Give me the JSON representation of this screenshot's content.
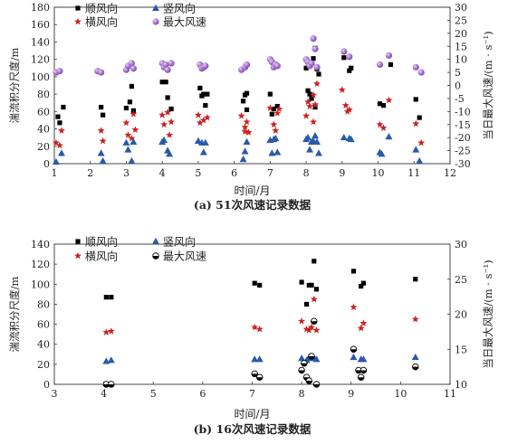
{
  "chart_data": [
    {
      "type": "scatter",
      "caption": "(a) 51次风速记录数据",
      "xlabel": "时间/月",
      "ylabel_left": "湍流积分尺度/m",
      "ylabel_right": "当日最大风速/(m · s⁻¹)",
      "xlim": [
        1,
        12
      ],
      "xticks": [
        1,
        2,
        3,
        4,
        5,
        6,
        7,
        8,
        9,
        10,
        11,
        12
      ],
      "ylim_left": [
        0,
        180
      ],
      "yticks_left": [
        0,
        20,
        40,
        60,
        80,
        100,
        120,
        140,
        160,
        180
      ],
      "ylim_right": [
        -30,
        30
      ],
      "yticks_right": [
        -30,
        -25,
        -20,
        -15,
        -10,
        -5,
        0,
        5,
        10,
        15,
        20,
        25,
        30
      ],
      "series": [
        {
          "name": "顺风向",
          "axis": "left",
          "marker": "square",
          "color": "#000000",
          "points": [
            [
              1.1,
              54
            ],
            [
              1.15,
              47
            ],
            [
              1.25,
              65
            ],
            [
              2.3,
              65
            ],
            [
              2.35,
              56
            ],
            [
              3.0,
              64
            ],
            [
              3.1,
              71
            ],
            [
              3.15,
              89
            ],
            [
              3.2,
              61
            ],
            [
              4.0,
              94
            ],
            [
              4.1,
              94
            ],
            [
              4.15,
              76
            ],
            [
              4.25,
              63
            ],
            [
              5.05,
              87
            ],
            [
              5.1,
              78
            ],
            [
              5.15,
              80
            ],
            [
              5.2,
              67
            ],
            [
              5.25,
              80
            ],
            [
              6.25,
              72
            ],
            [
              6.3,
              79
            ],
            [
              6.35,
              81
            ],
            [
              6.35,
              62
            ],
            [
              7.0,
              80
            ],
            [
              7.05,
              57
            ],
            [
              7.1,
              63
            ],
            [
              7.2,
              66
            ],
            [
              8.0,
              110
            ],
            [
              8.05,
              84
            ],
            [
              8.1,
              80
            ],
            [
              8.15,
              75
            ],
            [
              8.2,
              121
            ],
            [
              8.25,
              133
            ],
            [
              8.25,
              65
            ],
            [
              8.3,
              109
            ],
            [
              8.35,
              103
            ],
            [
              9.05,
              122
            ],
            [
              9.2,
              107
            ],
            [
              9.25,
              110
            ],
            [
              10.05,
              69
            ],
            [
              10.15,
              67
            ],
            [
              10.35,
              114
            ],
            [
              11.05,
              74
            ],
            [
              11.15,
              53
            ]
          ]
        },
        {
          "name": "横风向",
          "axis": "left",
          "marker": "star",
          "color": "#cc2222",
          "points": [
            [
              1.05,
              24
            ],
            [
              1.15,
              21
            ],
            [
              1.2,
              38
            ],
            [
              2.3,
              38
            ],
            [
              2.35,
              26
            ],
            [
              3.0,
              47
            ],
            [
              3.05,
              33
            ],
            [
              3.15,
              29
            ],
            [
              3.2,
              57
            ],
            [
              3.25,
              39
            ],
            [
              4.0,
              56
            ],
            [
              4.05,
              45
            ],
            [
              4.15,
              59
            ],
            [
              4.2,
              33
            ],
            [
              4.25,
              48
            ],
            [
              5.0,
              56
            ],
            [
              5.05,
              47
            ],
            [
              5.15,
              50
            ],
            [
              5.25,
              53
            ],
            [
              6.2,
              55
            ],
            [
              6.3,
              42
            ],
            [
              6.3,
              37
            ],
            [
              6.35,
              48
            ],
            [
              6.4,
              36
            ],
            [
              7.0,
              64
            ],
            [
              7.1,
              45
            ],
            [
              7.15,
              38
            ],
            [
              7.2,
              58
            ],
            [
              7.25,
              63
            ],
            [
              8.0,
              55
            ],
            [
              8.05,
              71
            ],
            [
              8.1,
              66
            ],
            [
              8.2,
              48
            ],
            [
              8.2,
              79
            ],
            [
              8.25,
              68
            ],
            [
              8.3,
              92
            ],
            [
              9.0,
              85
            ],
            [
              9.1,
              67
            ],
            [
              9.15,
              60
            ],
            [
              9.2,
              62
            ],
            [
              10.05,
              45
            ],
            [
              10.15,
              41
            ],
            [
              10.3,
              73
            ],
            [
              11.05,
              46
            ],
            [
              11.2,
              24
            ]
          ]
        },
        {
          "name": "竖风向",
          "axis": "left",
          "marker": "triangle",
          "color": "#2a5aa8",
          "points": [
            [
              1.05,
              2
            ],
            [
              1.2,
              12
            ],
            [
              2.3,
              12
            ],
            [
              2.35,
              3
            ],
            [
              3.0,
              24
            ],
            [
              3.05,
              16
            ],
            [
              3.15,
              3
            ],
            [
              3.2,
              25
            ],
            [
              4.0,
              25
            ],
            [
              4.05,
              27
            ],
            [
              4.15,
              15
            ],
            [
              4.2,
              11
            ],
            [
              5.0,
              26
            ],
            [
              5.1,
              24
            ],
            [
              5.15,
              13
            ],
            [
              5.2,
              24
            ],
            [
              6.25,
              5
            ],
            [
              6.3,
              14
            ],
            [
              6.35,
              25
            ],
            [
              7.0,
              27
            ],
            [
              7.05,
              12
            ],
            [
              7.1,
              28
            ],
            [
              7.15,
              29
            ],
            [
              7.2,
              13
            ],
            [
              8.0,
              28
            ],
            [
              8.05,
              30
            ],
            [
              8.1,
              16
            ],
            [
              8.15,
              25
            ],
            [
              8.2,
              26
            ],
            [
              8.25,
              32
            ],
            [
              8.3,
              25
            ],
            [
              8.35,
              12
            ],
            [
              9.05,
              30
            ],
            [
              9.2,
              29
            ],
            [
              9.25,
              28
            ],
            [
              10.05,
              13
            ],
            [
              10.1,
              11
            ],
            [
              10.3,
              31
            ],
            [
              11.05,
              16
            ],
            [
              11.15,
              3
            ]
          ]
        },
        {
          "name": "最大风速",
          "axis": "right",
          "marker": "circle",
          "color": "#a06cc8",
          "points": [
            [
              1.05,
              5
            ],
            [
              1.15,
              5.5
            ],
            [
              2.2,
              5.5
            ],
            [
              2.3,
              5
            ],
            [
              3.0,
              6
            ],
            [
              3.05,
              7.5
            ],
            [
              3.15,
              8.5
            ],
            [
              3.2,
              6.5
            ],
            [
              4.0,
              8.5
            ],
            [
              4.05,
              7
            ],
            [
              4.1,
              8
            ],
            [
              4.15,
              6
            ],
            [
              4.25,
              8.5
            ],
            [
              5.05,
              8
            ],
            [
              5.1,
              6.5
            ],
            [
              5.15,
              7
            ],
            [
              5.2,
              7.5
            ],
            [
              6.2,
              6
            ],
            [
              6.3,
              7
            ],
            [
              6.35,
              8
            ],
            [
              7.0,
              10
            ],
            [
              7.05,
              9
            ],
            [
              7.1,
              7
            ],
            [
              7.15,
              8
            ],
            [
              7.2,
              7.5
            ],
            [
              8.0,
              10
            ],
            [
              8.05,
              9
            ],
            [
              8.1,
              7.5
            ],
            [
              8.15,
              8.5
            ],
            [
              8.2,
              18
            ],
            [
              8.25,
              14
            ],
            [
              8.3,
              7
            ],
            [
              9.05,
              13
            ],
            [
              9.2,
              11
            ],
            [
              10.05,
              8
            ],
            [
              10.3,
              11.5
            ],
            [
              11.05,
              7
            ],
            [
              11.2,
              5
            ]
          ]
        }
      ]
    },
    {
      "type": "scatter",
      "caption": "(b) 16次风速记录数据",
      "xlabel": "时间/月",
      "ylabel_left": "湍流积分尺度/m",
      "ylabel_right": "当日最大风速/(m · s⁻¹)",
      "xlim": [
        3,
        11
      ],
      "xticks": [
        3,
        4,
        5,
        6,
        7,
        8,
        9,
        10,
        11
      ],
      "ylim_left": [
        0,
        140
      ],
      "yticks_left": [
        0,
        20,
        40,
        60,
        80,
        100,
        120,
        140
      ],
      "ylim_right": [
        10,
        30
      ],
      "yticks_right": [
        10,
        15,
        20,
        25,
        30
      ],
      "series": [
        {
          "name": "顺风向",
          "axis": "left",
          "marker": "square",
          "color": "#000000",
          "points": [
            [
              4.05,
              87
            ],
            [
              4.15,
              87
            ],
            [
              7.05,
              101
            ],
            [
              7.15,
              99
            ],
            [
              8.0,
              102
            ],
            [
              8.1,
              80
            ],
            [
              8.15,
              99
            ],
            [
              8.2,
              99
            ],
            [
              8.25,
              123
            ],
            [
              8.3,
              95
            ],
            [
              9.05,
              113
            ],
            [
              9.2,
              98
            ],
            [
              9.25,
              101
            ],
            [
              10.3,
              105
            ]
          ]
        },
        {
          "name": "横风向",
          "axis": "left",
          "marker": "star",
          "color": "#cc2222",
          "points": [
            [
              4.05,
              52
            ],
            [
              4.15,
              53
            ],
            [
              7.05,
              57
            ],
            [
              7.15,
              55
            ],
            [
              8.0,
              63
            ],
            [
              8.1,
              55
            ],
            [
              8.15,
              54
            ],
            [
              8.2,
              57
            ],
            [
              8.25,
              85
            ],
            [
              8.3,
              54
            ],
            [
              9.05,
              77
            ],
            [
              9.2,
              56
            ],
            [
              9.25,
              61
            ],
            [
              10.3,
              65
            ]
          ]
        },
        {
          "name": "竖风向",
          "axis": "left",
          "marker": "triangle",
          "color": "#2a5aa8",
          "points": [
            [
              4.05,
              23
            ],
            [
              4.15,
              24
            ],
            [
              7.05,
              25
            ],
            [
              7.15,
              25
            ],
            [
              8.0,
              26
            ],
            [
              8.1,
              24
            ],
            [
              8.15,
              27
            ],
            [
              8.2,
              26
            ],
            [
              8.25,
              26
            ],
            [
              8.3,
              25
            ],
            [
              9.05,
              27
            ],
            [
              9.2,
              25
            ],
            [
              9.25,
              25
            ],
            [
              10.3,
              27
            ]
          ]
        },
        {
          "name": "最大风速",
          "axis": "right",
          "marker": "halfcircle",
          "color": "#000000",
          "points": [
            [
              4.05,
              10
            ],
            [
              4.15,
              10
            ],
            [
              7.05,
              11.5
            ],
            [
              7.15,
              11
            ],
            [
              8.0,
              12
            ],
            [
              8.05,
              13
            ],
            [
              8.1,
              11
            ],
            [
              8.15,
              10.5
            ],
            [
              8.2,
              14
            ],
            [
              8.25,
              19
            ],
            [
              8.3,
              10
            ],
            [
              9.05,
              15
            ],
            [
              9.15,
              12
            ],
            [
              9.2,
              11
            ],
            [
              9.25,
              12
            ],
            [
              10.3,
              12.5
            ]
          ]
        }
      ]
    }
  ]
}
